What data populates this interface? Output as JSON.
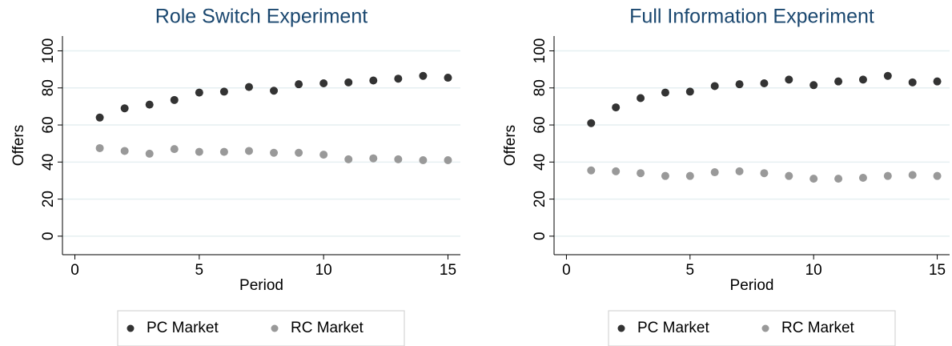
{
  "chart_data": [
    {
      "type": "scatter",
      "title": "Role Switch Experiment",
      "x_label": "Period",
      "y_label": "Offers",
      "x": [
        1,
        2,
        3,
        4,
        5,
        6,
        7,
        8,
        9,
        10,
        11,
        12,
        13,
        14,
        15
      ],
      "series": [
        {
          "name": "PC Market",
          "color": "#333333",
          "values": [
            64,
            69,
            71,
            73.5,
            77.5,
            78,
            80.5,
            78.5,
            82,
            82.5,
            83,
            84,
            85,
            86.5,
            85.5
          ]
        },
        {
          "name": "RC Market",
          "color": "#999999",
          "values": [
            47.5,
            46,
            44.5,
            47,
            45.5,
            45.5,
            46,
            45,
            45,
            44,
            41.5,
            42,
            41.5,
            41,
            41
          ]
        }
      ],
      "xlim": [
        -0.5,
        15.5
      ],
      "ylim": [
        -10,
        108
      ],
      "xticks": [
        0,
        5,
        10,
        15
      ],
      "yticks": [
        0,
        20,
        40,
        60,
        80,
        100
      ],
      "grid": true,
      "legend": "bottom"
    },
    {
      "type": "scatter",
      "title": "Full Information Experiment",
      "x_label": "Period",
      "y_label": "Offers",
      "x": [
        1,
        2,
        3,
        4,
        5,
        6,
        7,
        8,
        9,
        10,
        11,
        12,
        13,
        14,
        15
      ],
      "series": [
        {
          "name": "PC Market",
          "color": "#333333",
          "values": [
            61,
            69.5,
            74.5,
            77.5,
            78,
            81,
            82,
            82.5,
            84.5,
            81.5,
            83.5,
            84.5,
            86.5,
            83,
            83.5
          ]
        },
        {
          "name": "RC Market",
          "color": "#999999",
          "values": [
            35.5,
            35,
            34,
            32.5,
            32.5,
            34.5,
            35,
            34,
            32.5,
            31,
            31,
            31.5,
            32.5,
            33,
            32.5
          ]
        }
      ],
      "xlim": [
        -0.5,
        15.5
      ],
      "ylim": [
        -10,
        108
      ],
      "xticks": [
        0,
        5,
        10,
        15
      ],
      "yticks": [
        0,
        20,
        40,
        60,
        80,
        100
      ],
      "grid": true,
      "legend": "bottom"
    }
  ]
}
